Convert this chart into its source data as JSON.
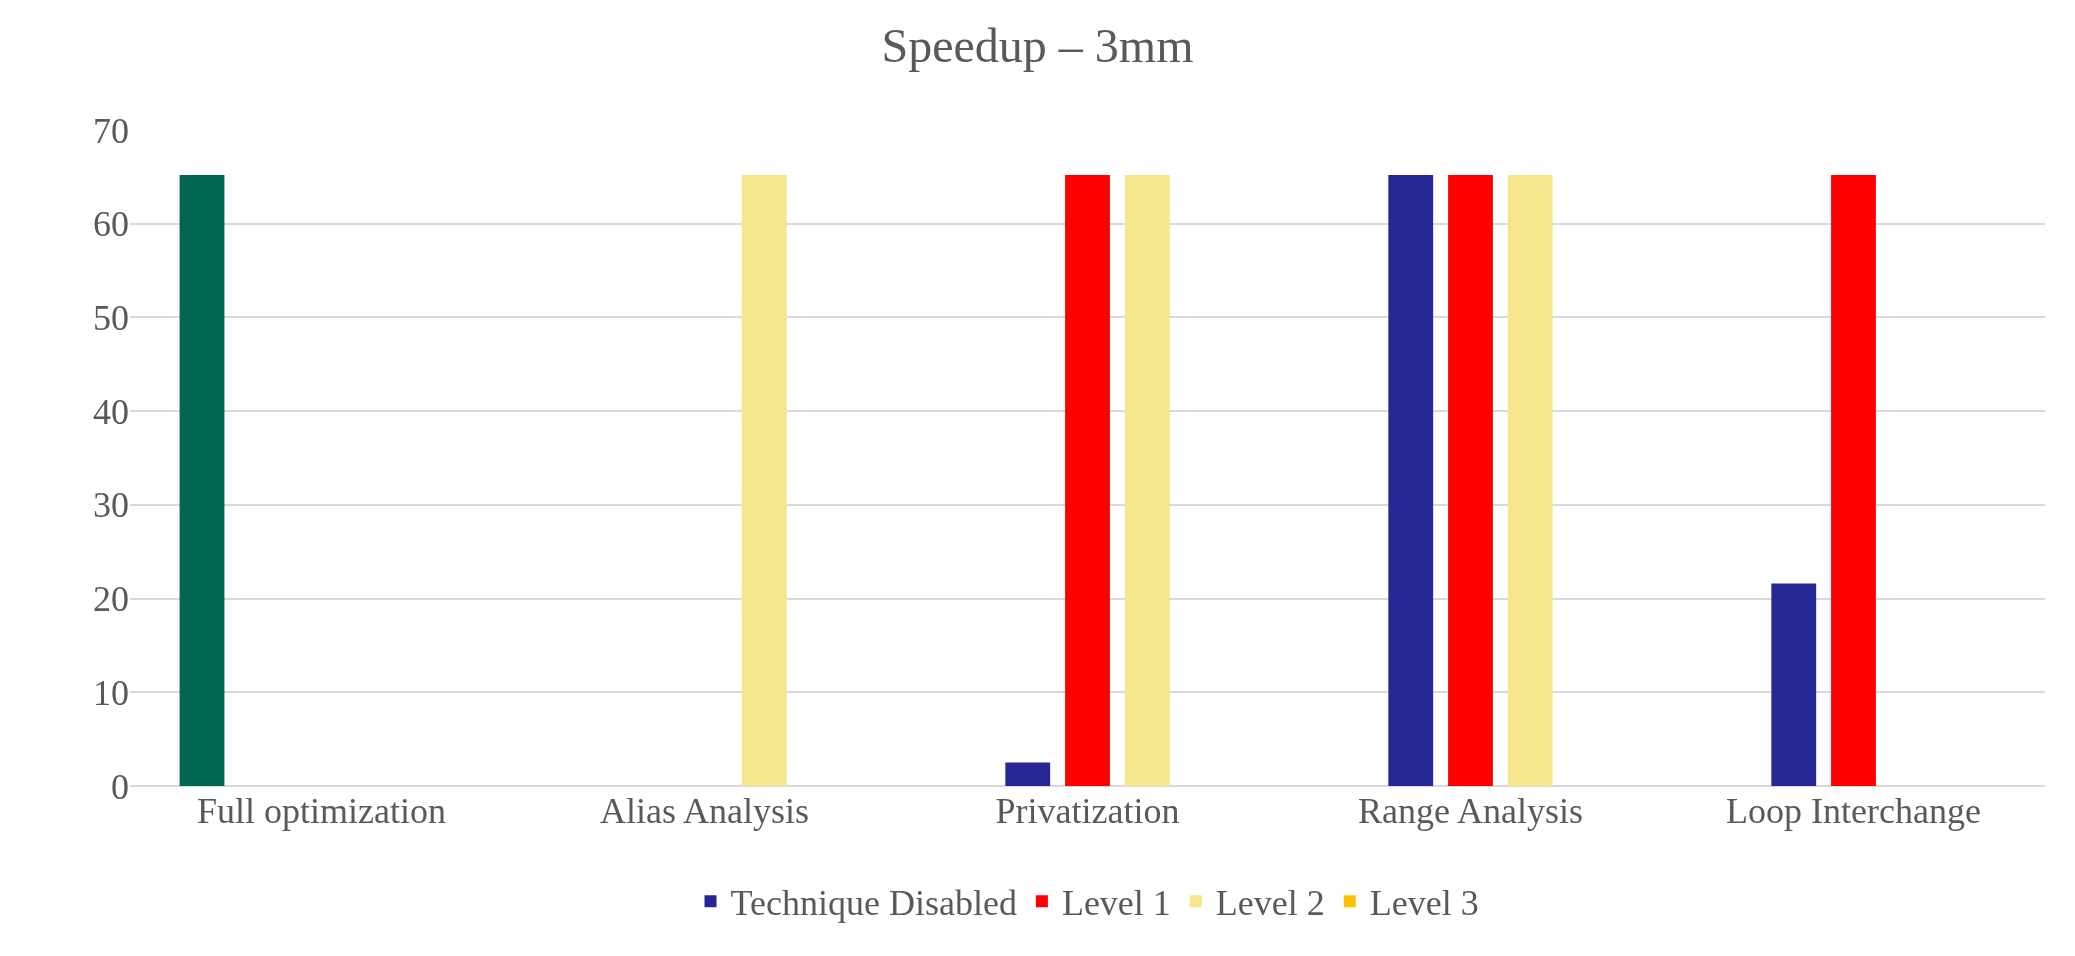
{
  "chart_data": {
    "type": "bar",
    "title": "Speedup – 3mm",
    "categories": [
      "Full optimization",
      "Alias Analysis",
      "Privatization",
      "Range Analysis",
      "Loop Interchange"
    ],
    "series": [
      {
        "color": "#00664f",
        "values": [
          65.2,
          null,
          null,
          null,
          null
        ]
      },
      {
        "name": "Technique Disabled",
        "color": "#262694",
        "values": [
          null,
          null,
          2.5,
          65.2,
          21.6
        ]
      },
      {
        "name": "Level 1",
        "color": "#ff0000",
        "values": [
          null,
          null,
          65.2,
          65.2,
          65.2
        ]
      },
      {
        "name": "Level 2",
        "color": "#f5e68c",
        "values": [
          null,
          65.2,
          65.2,
          65.2,
          null
        ]
      },
      {
        "name": "Level 3",
        "color": "#ffc000",
        "values": [
          null,
          null,
          null,
          null,
          null
        ]
      }
    ],
    "ylim": [
      0,
      70
    ],
    "yticks": [
      0,
      10,
      20,
      30,
      40,
      50,
      60,
      70
    ],
    "grid": "y",
    "legend": "bottom"
  }
}
